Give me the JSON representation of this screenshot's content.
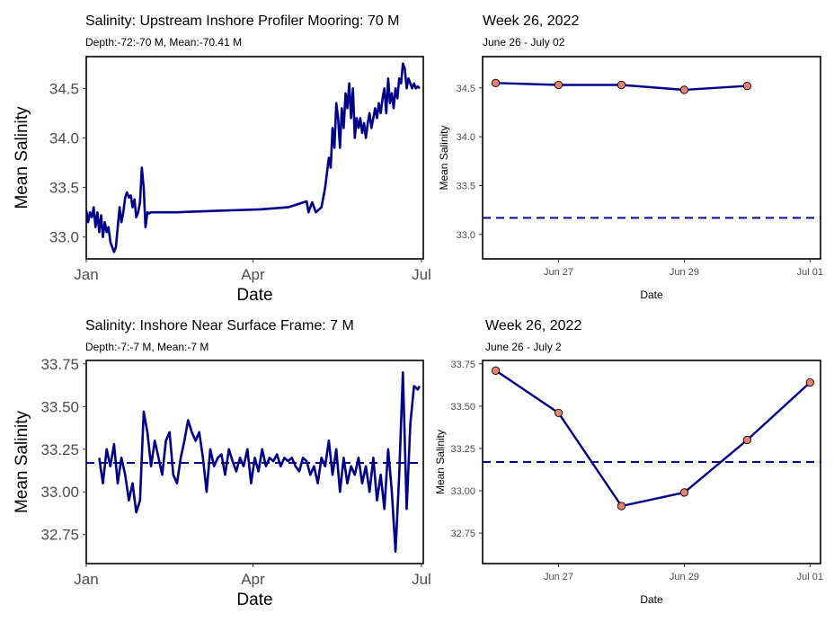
{
  "chart_data": [
    {
      "type": "line",
      "title": "Salinity: Upstream Inshore Profiler Mooring: 70 M",
      "subtitle": "Depth:-72:-70 M, Mean:-70.41 M",
      "xlabel": "Date",
      "ylabel": "Mean Salinity",
      "x_type": "date",
      "xlim": [
        "2022-01-01",
        "2022-07-02"
      ],
      "ylim": [
        32.78,
        34.82
      ],
      "xticks": [
        {
          "value": "2022-01-01",
          "label": "Jan"
        },
        {
          "value": "2022-04-01",
          "label": "Apr"
        },
        {
          "value": "2022-07-01",
          "label": "Jul"
        }
      ],
      "yticks": [
        {
          "value": 33.0,
          "label": "33.0"
        },
        {
          "value": 33.5,
          "label": "33.5"
        },
        {
          "value": 34.0,
          "label": "34.0"
        },
        {
          "value": 34.5,
          "label": "34.5"
        }
      ],
      "color": "#00008B",
      "grid": false,
      "series": [
        {
          "x": [
            "2022-01-01",
            "2022-01-02",
            "2022-01-03",
            "2022-01-04",
            "2022-01-05",
            "2022-01-06",
            "2022-01-07",
            "2022-01-08",
            "2022-01-09",
            "2022-01-10",
            "2022-01-11",
            "2022-01-12",
            "2022-01-13",
            "2022-01-14",
            "2022-01-15",
            "2022-01-16",
            "2022-01-17",
            "2022-01-18",
            "2022-01-19",
            "2022-01-20",
            "2022-01-21",
            "2022-01-22",
            "2022-01-23",
            "2022-01-24",
            "2022-01-25",
            "2022-01-26",
            "2022-01-27",
            "2022-01-28",
            "2022-01-29",
            "2022-01-30",
            "2022-01-31",
            "2022-02-01",
            "2022-02-02",
            "2022-02-03",
            "2022-02-04",
            "2022-02-05",
            "2022-02-06",
            "2022-02-07",
            "2022-02-08",
            "2022-02-09",
            "2022-02-10",
            "2022-02-11",
            "2022-02-12",
            "2022-02-13",
            "2022-02-14",
            "2022-02-15",
            "2022-02-16",
            "2022-02-17",
            "2022-02-18",
            "2022-02-19",
            "2022-03-05",
            "2022-03-20",
            "2022-04-05",
            "2022-04-20",
            "2022-04-30",
            "2022-05-01",
            "2022-05-02",
            "2022-05-03",
            "2022-05-05",
            "2022-05-08",
            "2022-05-10",
            "2022-05-12",
            "2022-05-13",
            "2022-05-14",
            "2022-05-15",
            "2022-05-16",
            "2022-05-17",
            "2022-05-18",
            "2022-05-19",
            "2022-05-20",
            "2022-05-21",
            "2022-05-22",
            "2022-05-23",
            "2022-05-24",
            "2022-05-25",
            "2022-05-26",
            "2022-05-27",
            "2022-05-28",
            "2022-05-29",
            "2022-05-30",
            "2022-05-31",
            "2022-06-01",
            "2022-06-02",
            "2022-06-03",
            "2022-06-04",
            "2022-06-05",
            "2022-06-06",
            "2022-06-07",
            "2022-06-08",
            "2022-06-09",
            "2022-06-10",
            "2022-06-11",
            "2022-06-12",
            "2022-06-13",
            "2022-06-14",
            "2022-06-15",
            "2022-06-16",
            "2022-06-17",
            "2022-06-18",
            "2022-06-19",
            "2022-06-20",
            "2022-06-21",
            "2022-06-22",
            "2022-06-23",
            "2022-06-24",
            "2022-06-25",
            "2022-06-26",
            "2022-06-27",
            "2022-06-28",
            "2022-06-29",
            "2022-06-30"
          ],
          "y": [
            33.27,
            33.15,
            33.25,
            33.2,
            33.3,
            33.1,
            33.25,
            33.05,
            33.22,
            33.0,
            33.15,
            33.05,
            33.1,
            32.95,
            32.9,
            32.85,
            32.9,
            33.1,
            33.3,
            33.15,
            33.25,
            33.4,
            33.45,
            33.4,
            33.42,
            33.3,
            33.38,
            33.2,
            33.25,
            33.35,
            33.7,
            33.5,
            33.1,
            33.25,
            33.24,
            33.25,
            33.25,
            33.25,
            33.25,
            33.25,
            33.25,
            33.25,
            33.25,
            33.25,
            33.25,
            33.25,
            33.25,
            33.25,
            33.25,
            33.25,
            33.26,
            33.27,
            33.28,
            33.3,
            33.36,
            33.25,
            33.3,
            33.35,
            33.25,
            33.3,
            33.5,
            33.8,
            33.7,
            34.1,
            33.9,
            34.35,
            34.2,
            33.9,
            34.3,
            34.1,
            34.45,
            34.3,
            34.55,
            34.2,
            34.5,
            34.0,
            34.2,
            34.1,
            34.2,
            34.05,
            34.15,
            34.0,
            34.15,
            34.25,
            34.1,
            34.2,
            34.3,
            34.2,
            34.35,
            34.25,
            34.4,
            34.5,
            34.25,
            34.6,
            34.35,
            34.45,
            34.3,
            34.5,
            34.4,
            34.6,
            34.55,
            34.75,
            34.7,
            34.5,
            34.6,
            34.55,
            34.5,
            34.55,
            34.5,
            34.52,
            34.5
          ]
        }
      ]
    },
    {
      "type": "line",
      "title": "Week 26, 2022",
      "subtitle": "June 26 - July 02",
      "xlabel": "Date",
      "ylabel": "Mean Salinity",
      "x_type": "date",
      "xlim": [
        "2022-06-25T19:00",
        "2022-07-01T04:00"
      ],
      "ylim": [
        32.75,
        34.82
      ],
      "xticks": [
        {
          "value": "2022-06-27",
          "label": "Jun 27"
        },
        {
          "value": "2022-06-29",
          "label": "Jun 29"
        },
        {
          "value": "2022-07-01",
          "label": "Jul 01"
        }
      ],
      "yticks": [
        {
          "value": 33.0,
          "label": "33.0"
        },
        {
          "value": 33.5,
          "label": "33.5"
        },
        {
          "value": 34.0,
          "label": "34.0"
        },
        {
          "value": 34.5,
          "label": "34.5"
        }
      ],
      "reference_line": 33.17,
      "line_color": "#00008B",
      "point_color": "#E9806E",
      "grid": false,
      "series": [
        {
          "x": [
            "2022-06-26",
            "2022-06-27",
            "2022-06-28",
            "2022-06-29",
            "2022-06-30"
          ],
          "y": [
            34.55,
            34.53,
            34.53,
            34.48,
            34.52
          ]
        }
      ]
    },
    {
      "type": "line",
      "title": "Salinity: Inshore Near Surface Frame: 7 M",
      "subtitle": "Depth:-7:-7 M, Mean:-7 M",
      "xlabel": "Date",
      "ylabel": "Mean Salinity",
      "x_type": "date",
      "xlim": [
        "2022-01-01",
        "2022-07-02"
      ],
      "ylim": [
        32.58,
        33.77
      ],
      "xticks": [
        {
          "value": "2022-01-01",
          "label": "Jan"
        },
        {
          "value": "2022-04-01",
          "label": "Apr"
        },
        {
          "value": "2022-07-01",
          "label": "Jul"
        }
      ],
      "yticks": [
        {
          "value": 32.75,
          "label": "32.75"
        },
        {
          "value": 33.0,
          "label": "33.00"
        },
        {
          "value": 33.25,
          "label": "33.25"
        },
        {
          "value": 33.5,
          "label": "33.50"
        },
        {
          "value": 33.75,
          "label": "33.75"
        }
      ],
      "reference_line": 33.17,
      "color": "#00008B",
      "grid": false,
      "series": [
        {
          "x": [
            "2022-01-08",
            "2022-01-10",
            "2022-01-12",
            "2022-01-14",
            "2022-01-16",
            "2022-01-18",
            "2022-01-20",
            "2022-01-22",
            "2022-01-24",
            "2022-01-26",
            "2022-01-28",
            "2022-01-30",
            "2022-02-01",
            "2022-02-03",
            "2022-02-05",
            "2022-02-07",
            "2022-02-09",
            "2022-02-11",
            "2022-02-13",
            "2022-02-15",
            "2022-02-17",
            "2022-02-19",
            "2022-02-21",
            "2022-02-23",
            "2022-02-25",
            "2022-02-27",
            "2022-03-01",
            "2022-03-03",
            "2022-03-05",
            "2022-03-07",
            "2022-03-09",
            "2022-03-11",
            "2022-03-13",
            "2022-03-15",
            "2022-03-17",
            "2022-03-19",
            "2022-03-21",
            "2022-03-23",
            "2022-03-25",
            "2022-03-27",
            "2022-03-29",
            "2022-03-31",
            "2022-04-02",
            "2022-04-04",
            "2022-04-06",
            "2022-04-08",
            "2022-04-10",
            "2022-04-12",
            "2022-04-14",
            "2022-04-16",
            "2022-04-18",
            "2022-04-20",
            "2022-04-22",
            "2022-04-24",
            "2022-04-26",
            "2022-04-28",
            "2022-04-30",
            "2022-05-02",
            "2022-05-04",
            "2022-05-06",
            "2022-05-08",
            "2022-05-10",
            "2022-05-12",
            "2022-05-14",
            "2022-05-16",
            "2022-05-18",
            "2022-05-20",
            "2022-05-22",
            "2022-05-24",
            "2022-05-26",
            "2022-05-28",
            "2022-05-30",
            "2022-06-01",
            "2022-06-03",
            "2022-06-05",
            "2022-06-07",
            "2022-06-09",
            "2022-06-11",
            "2022-06-13",
            "2022-06-15",
            "2022-06-17",
            "2022-06-19",
            "2022-06-21",
            "2022-06-23",
            "2022-06-25",
            "2022-06-27",
            "2022-06-29",
            "2022-06-30"
          ],
          "y": [
            33.2,
            33.05,
            33.25,
            33.15,
            33.28,
            33.05,
            33.2,
            33.1,
            32.95,
            33.05,
            32.88,
            32.95,
            33.47,
            33.35,
            33.15,
            33.3,
            33.2,
            33.1,
            33.3,
            33.35,
            33.1,
            33.05,
            33.2,
            33.3,
            33.42,
            33.35,
            33.3,
            33.35,
            33.2,
            33.0,
            33.25,
            33.15,
            33.2,
            33.22,
            33.1,
            33.25,
            33.18,
            33.12,
            33.2,
            33.15,
            33.25,
            33.05,
            33.2,
            33.12,
            33.25,
            33.15,
            33.2,
            33.18,
            33.22,
            33.15,
            33.2,
            33.18,
            33.2,
            33.15,
            33.12,
            33.2,
            33.18,
            33.1,
            33.15,
            33.05,
            33.2,
            33.15,
            33.3,
            33.1,
            33.25,
            33.0,
            33.2,
            33.05,
            33.15,
            33.1,
            33.2,
            33.05,
            33.15,
            33.0,
            33.2,
            32.95,
            33.1,
            32.9,
            33.25,
            33.0,
            32.65,
            33.1,
            33.7,
            32.9,
            33.4,
            33.62,
            33.6,
            33.62
          ]
        }
      ]
    },
    {
      "type": "line",
      "title": "Week 26, 2022",
      "subtitle": "June 26 - July 2",
      "xlabel": "Date",
      "ylabel": "Mean Salinity",
      "x_type": "date",
      "xlim": [
        "2022-06-25T19:00",
        "2022-07-01T04:00"
      ],
      "ylim": [
        32.57,
        33.77
      ],
      "xticks": [
        {
          "value": "2022-06-27",
          "label": "Jun 27"
        },
        {
          "value": "2022-06-29",
          "label": "Jun 29"
        },
        {
          "value": "2022-07-01",
          "label": "Jul 01"
        }
      ],
      "yticks": [
        {
          "value": 32.75,
          "label": "32.75"
        },
        {
          "value": 33.0,
          "label": "33.00"
        },
        {
          "value": 33.25,
          "label": "33.25"
        },
        {
          "value": 33.5,
          "label": "33.50"
        },
        {
          "value": 33.75,
          "label": "33.75"
        }
      ],
      "reference_line": 33.17,
      "line_color": "#00008B",
      "point_color": "#E9806E",
      "grid": false,
      "series": [
        {
          "x": [
            "2022-06-26",
            "2022-06-27",
            "2022-06-28",
            "2022-06-29",
            "2022-06-30",
            "2022-07-01"
          ],
          "y": [
            33.71,
            33.46,
            32.91,
            32.99,
            33.3,
            33.64
          ]
        }
      ]
    }
  ]
}
